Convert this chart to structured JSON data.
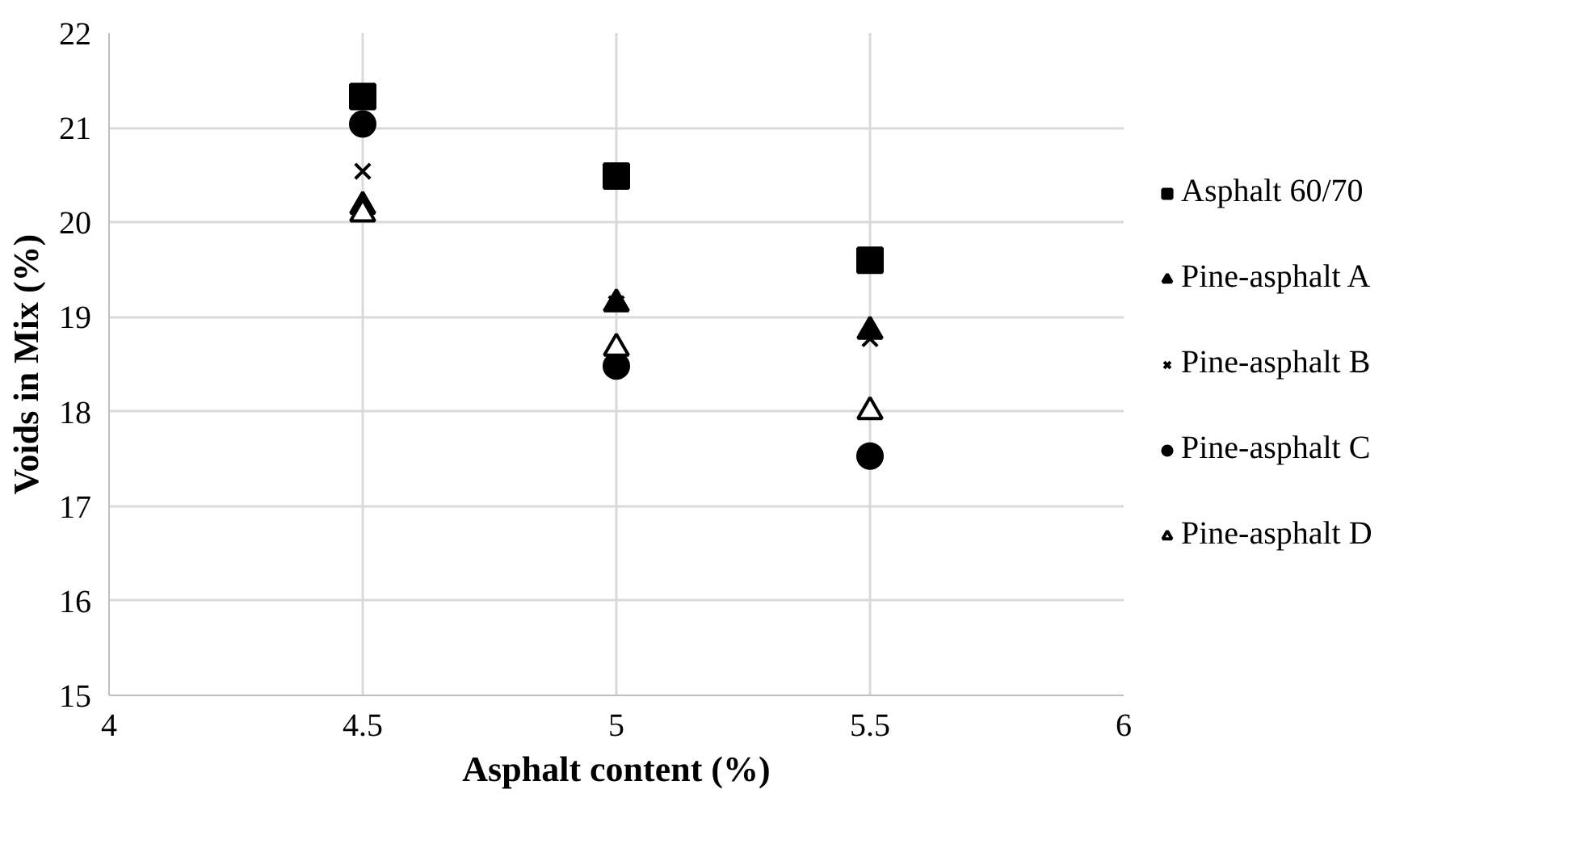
{
  "chart_data": {
    "type": "scatter",
    "xlabel": "Asphalt content (%)",
    "ylabel": "Voids in Mix (%)",
    "x": [
      4.5,
      5,
      5.5
    ],
    "series": [
      {
        "name": "Asphalt 60/70",
        "color": "#000000",
        "marker": "square",
        "values": [
          21.33,
          20.49,
          19.6
        ]
      },
      {
        "name": "Pine-asphalt A",
        "color": "#000000",
        "marker": "triangle",
        "values": [
          20.17,
          19.14,
          18.85
        ]
      },
      {
        "name": "Pine-asphalt B",
        "color": "#000000",
        "marker": "cross",
        "values": [
          20.54,
          19.14,
          18.77
        ]
      },
      {
        "name": "Pine-asphalt C",
        "color": "#000000",
        "marker": "circle",
        "values": [
          21.04,
          18.48,
          17.53
        ]
      },
      {
        "name": "Pine-asphalt D",
        "color": "#ffffff",
        "marker": "triangle",
        "values": [
          20.09,
          18.67,
          18.0
        ]
      }
    ],
    "xlim": [
      4,
      6
    ],
    "xticks": [
      4,
      4.5,
      5,
      5.5,
      6
    ],
    "ylim": [
      15,
      22
    ],
    "yticks": [
      15,
      16,
      17,
      18,
      19,
      20,
      21,
      22
    ],
    "grid": true,
    "legend": "right"
  }
}
